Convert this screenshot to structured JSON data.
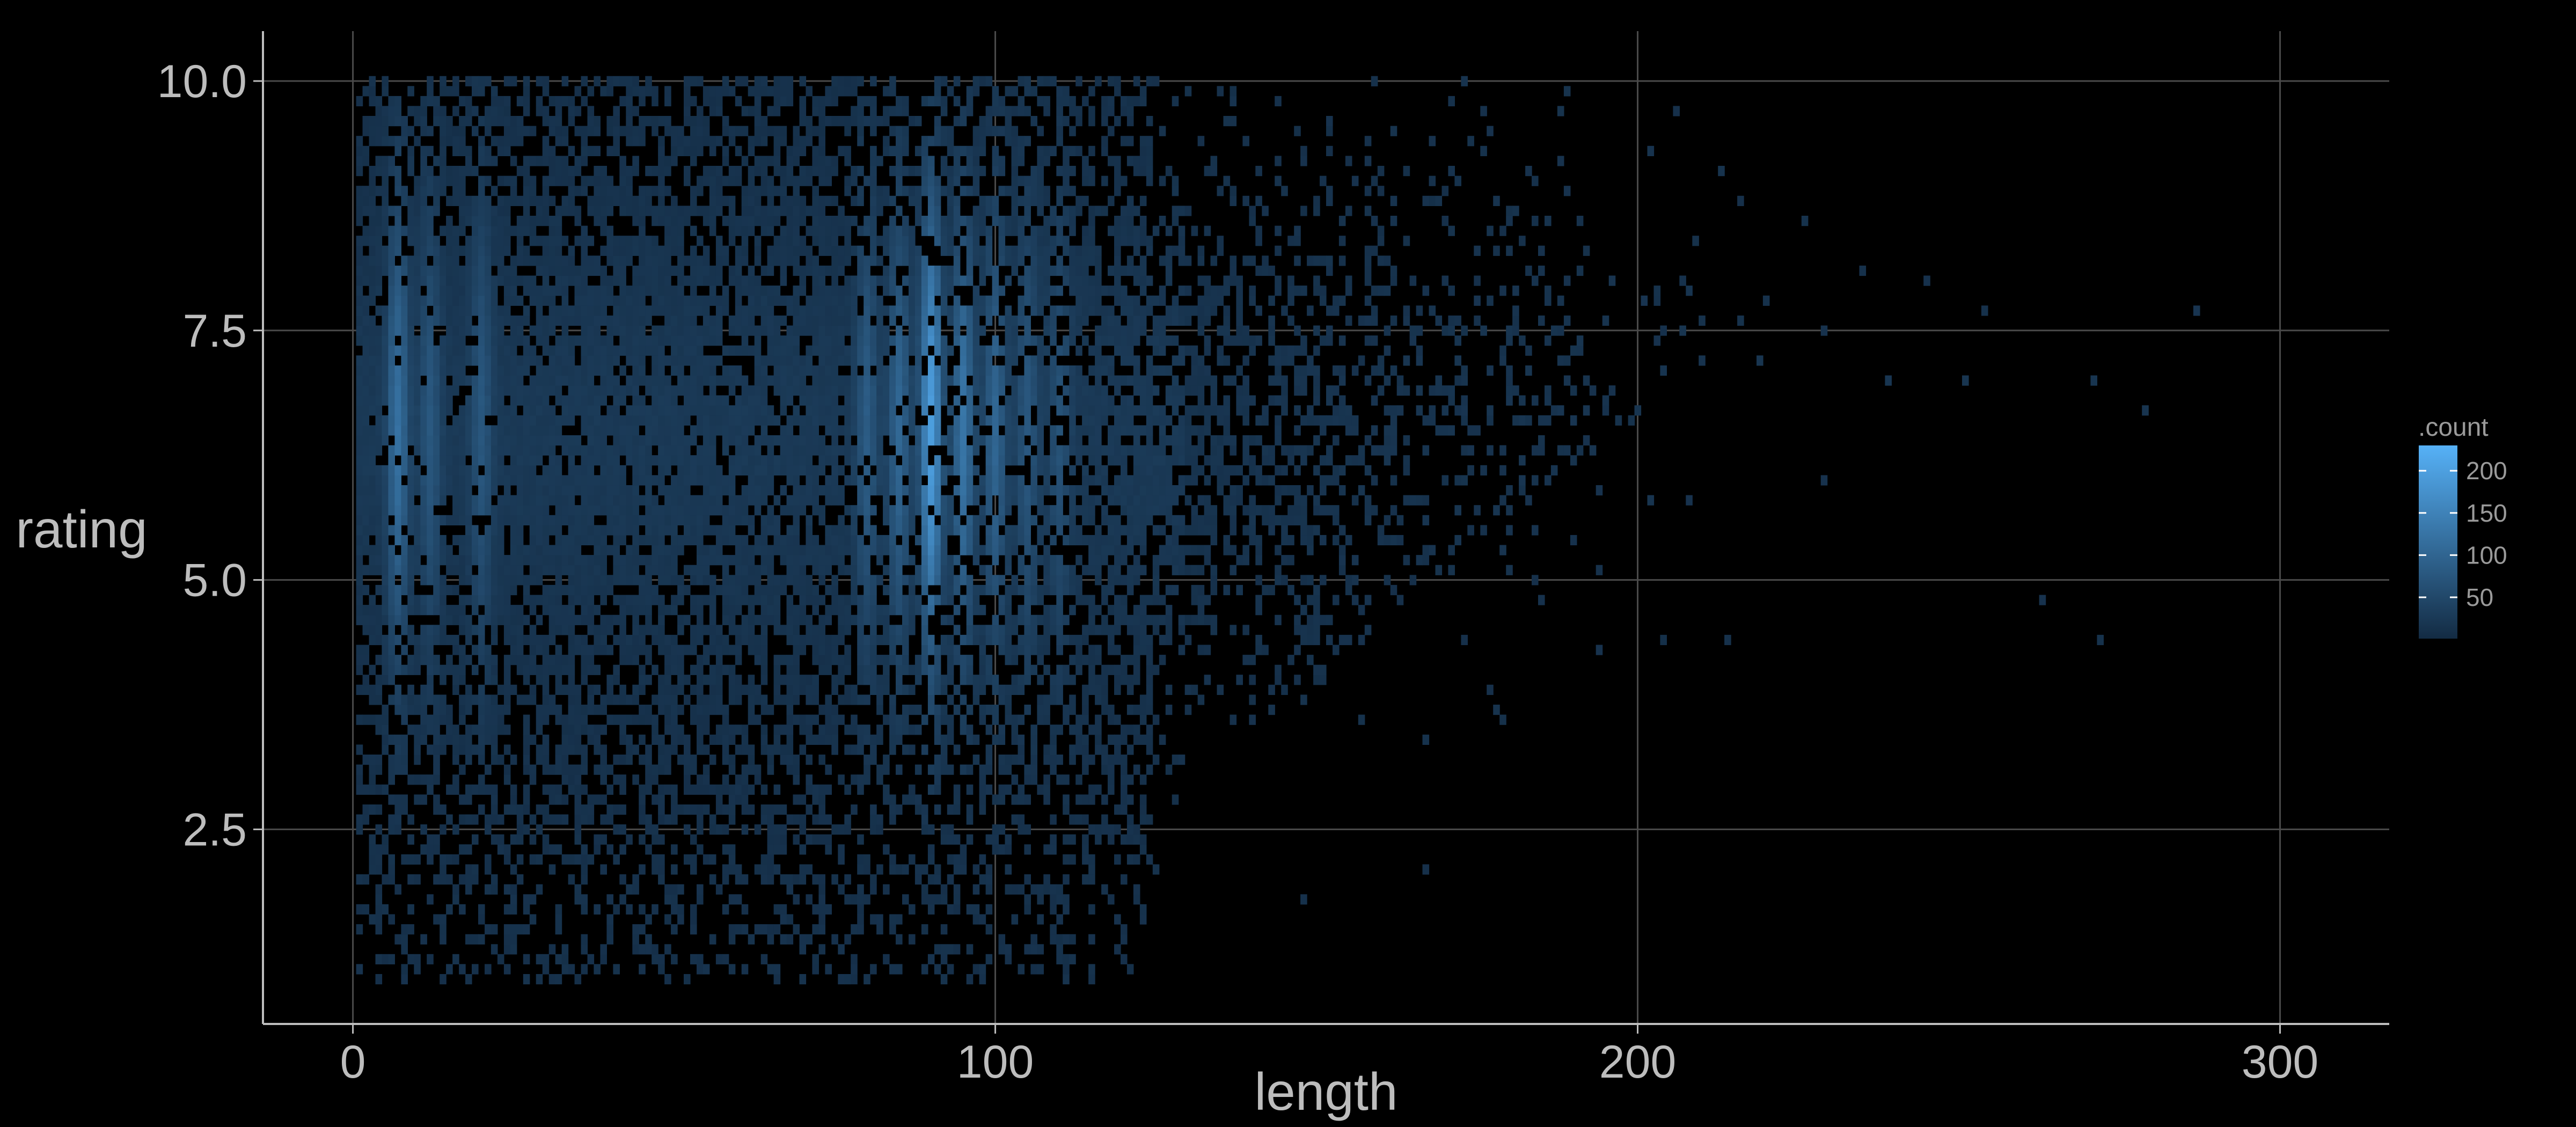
{
  "chart_data": {
    "type": "heatmap",
    "title": "",
    "xlabel": "length",
    "ylabel": "rating",
    "xlim": [
      -14,
      317
    ],
    "ylim": [
      0.55,
      10.5
    ],
    "x_ticks": [
      {
        "value": 0,
        "label": "0"
      },
      {
        "value": 100,
        "label": "100"
      },
      {
        "value": 200,
        "label": "200"
      },
      {
        "value": 300,
        "label": "300"
      }
    ],
    "y_ticks": [
      {
        "value": 2.5,
        "label": "2.5"
      },
      {
        "value": 5.0,
        "label": "5.0"
      },
      {
        "value": 7.5,
        "label": "7.5"
      },
      {
        "value": 10.0,
        "label": "10.0"
      }
    ],
    "grid": true,
    "bins": {
      "x_width": 1,
      "y_step": 0.1,
      "x_range": [
        1,
        301
      ],
      "y_range": [
        1.0,
        10.0
      ]
    },
    "color_scale": {
      "name": ".count",
      "low_color": "#132b43",
      "high_color": "#56b1f7",
      "min": 1,
      "max": 230,
      "breaks": [
        50,
        100,
        150,
        200
      ]
    },
    "legend_position": "right",
    "density_profile": {
      "length_modes": [
        {
          "length": 7,
          "weight": 0.55
        },
        {
          "length": 90,
          "weight": 1.0
        },
        {
          "length": 95,
          "weight": 0.6
        },
        {
          "length": 85,
          "weight": 0.45
        },
        {
          "length": 100,
          "weight": 0.45
        },
        {
          "length": 80,
          "weight": 0.35
        },
        {
          "length": 105,
          "weight": 0.3
        },
        {
          "length": 110,
          "weight": 0.25
        },
        {
          "length": 20,
          "weight": 0.3
        },
        {
          "length": 12,
          "weight": 0.3
        }
      ],
      "rating_peak": 6.5,
      "sparse_tail_upper_length": 300
    }
  }
}
